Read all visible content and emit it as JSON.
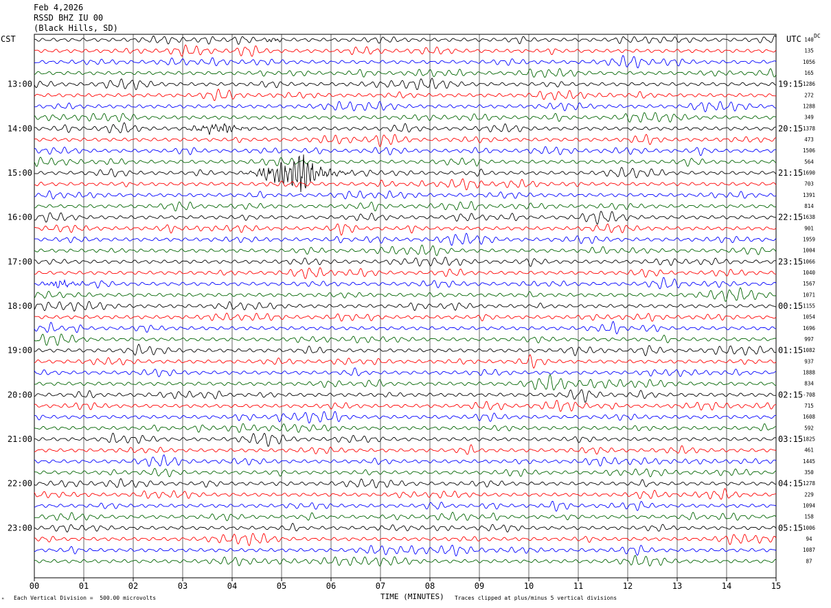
{
  "header": {
    "date": "Feb 4,2026",
    "station": "RSSD BHZ IU 00",
    "location": "(Black Hills, SD)"
  },
  "axis": {
    "left_label": "CST",
    "right_label": "UTC",
    "dc_label": "DC"
  },
  "footer": {
    "x_title": "TIME (MINUTES)",
    "division_note": "Each Vertical Division =  500.00 microvolts",
    "clip_note": "Traces clipped at plus/minus 5 vertical divisions",
    "corner_mark": "ᴹ"
  },
  "chart_data": {
    "type": "line",
    "title": "Feb 4,2026 RSSD BHZ IU 00 (Black Hills, SD)",
    "xlabel": "TIME (MINUTES)",
    "xlim": [
      0,
      15
    ],
    "x_ticks": [
      "00",
      "01",
      "02",
      "03",
      "04",
      "05",
      "06",
      "07",
      "08",
      "09",
      "10",
      "11",
      "12",
      "13",
      "14",
      "15"
    ],
    "grid": true,
    "minutes_per_line": 15,
    "line_colors": [
      "#000000",
      "#ff0000",
      "#0000ff",
      "#006400"
    ],
    "left_time_labels": [
      "13:00",
      "14:00",
      "15:00",
      "16:00",
      "17:00",
      "18:00",
      "19:00",
      "20:00",
      "21:00",
      "22:00",
      "23:00"
    ],
    "right_time_labels": [
      "19:15",
      "20:15",
      "21:15",
      "22:15",
      "23:15",
      "00:15",
      "01:15",
      "02:15",
      "03:15",
      "04:15",
      "05:15"
    ],
    "dc_values": [
      "140",
      "135",
      "1056",
      "165",
      "1286",
      "272",
      "1288",
      "349",
      "1378",
      "473",
      "1506",
      "564",
      "1690",
      "703",
      "1391",
      "814",
      "1638",
      "901",
      "1959",
      "1004",
      "1066",
      "1040",
      "1567",
      "1071",
      "1155",
      "1054",
      "1696",
      "997",
      "1082",
      "937",
      "1888",
      "834",
      "-708",
      "715",
      "1608",
      "592",
      "1825",
      "461",
      "1445",
      "350",
      "1278",
      "229",
      "1094",
      "158",
      "1006",
      "94",
      "1087",
      "87"
    ],
    "events": [
      {
        "line": 12,
        "start_min": 4.0,
        "peak_min": 5.4,
        "end_min": 7.0,
        "amplitude": "large",
        "note": "clipped"
      },
      {
        "line": 8,
        "start_min": 2.7,
        "peak_min": 3.8,
        "end_min": 4.6,
        "amplitude": "moderate"
      },
      {
        "line": 22,
        "start_min": 0.0,
        "peak_min": 0.5,
        "end_min": 1.3,
        "amplitude": "moderate"
      },
      {
        "line": 0,
        "start_min": 4.6,
        "peak_min": 4.8,
        "end_min": 5.0,
        "amplitude": "small"
      }
    ]
  }
}
